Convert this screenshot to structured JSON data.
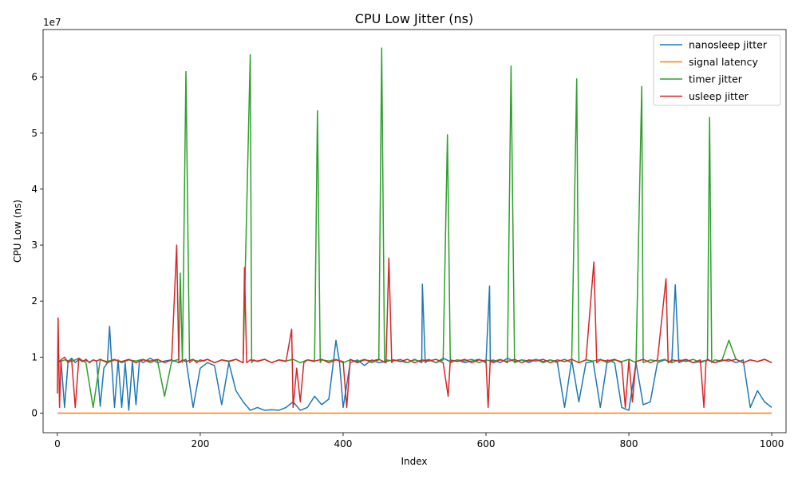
{
  "chart_data": {
    "type": "line",
    "title": "CPU Low Jitter (ns)",
    "xlabel": "Index",
    "ylabel": "CPU Low (ns)",
    "y_offset_label": "1e7",
    "xlim": [
      -20,
      1020
    ],
    "ylim": [
      -3500000,
      68500000
    ],
    "x_ticks": [
      0,
      200,
      400,
      600,
      800,
      1000
    ],
    "y_ticks": [
      0,
      10000000,
      20000000,
      30000000,
      40000000,
      50000000,
      60000000
    ],
    "y_tick_labels": [
      "0",
      "1",
      "2",
      "3",
      "4",
      "5",
      "6"
    ],
    "grid": false,
    "legend_position": "top-right",
    "series": [
      {
        "name": "nanosleep jitter",
        "color": "#1f77b4",
        "x": [
          0,
          5,
          10,
          15,
          20,
          25,
          30,
          35,
          40,
          45,
          50,
          55,
          60,
          65,
          70,
          73,
          76,
          80,
          85,
          90,
          95,
          100,
          105,
          110,
          115,
          120,
          130,
          140,
          150,
          160,
          170,
          180,
          190,
          200,
          210,
          220,
          230,
          240,
          250,
          260,
          270,
          280,
          290,
          300,
          310,
          320,
          330,
          340,
          350,
          360,
          370,
          380,
          390,
          395,
          400,
          410,
          420,
          430,
          440,
          450,
          460,
          470,
          480,
          490,
          500,
          510,
          511,
          515,
          520,
          530,
          540,
          550,
          560,
          570,
          580,
          590,
          600,
          605,
          606,
          610,
          620,
          630,
          640,
          650,
          660,
          670,
          680,
          690,
          700,
          710,
          720,
          730,
          740,
          750,
          760,
          770,
          780,
          790,
          800,
          810,
          820,
          830,
          840,
          850,
          860,
          865,
          870,
          880,
          890,
          900,
          910,
          920,
          930,
          940,
          950,
          960,
          970,
          980,
          990,
          1000
        ],
        "values": [
          9000000,
          9500000,
          1000000,
          9200000,
          9800000,
          9000000,
          9600000,
          9200000,
          9400000,
          9100000,
          9500000,
          9300000,
          1200000,
          8000000,
          9000000,
          15500000,
          9000000,
          1000000,
          9500000,
          1000000,
          9000000,
          500000,
          9200000,
          1500000,
          9500000,
          9000000,
          9800000,
          9000000,
          9300000,
          9500000,
          9000000,
          9600000,
          1000000,
          8000000,
          9000000,
          8500000,
          1500000,
          9000000,
          4000000,
          2000000,
          500000,
          1000000,
          500000,
          600000,
          500000,
          1000000,
          2000000,
          500000,
          1000000,
          3000000,
          1500000,
          2500000,
          13000000,
          9000000,
          1000000,
          9000000,
          9500000,
          8500000,
          9500000,
          9000000,
          9200000,
          9500000,
          9300000,
          9000000,
          9600000,
          9000000,
          23000000,
          9000000,
          9500000,
          9000000,
          9800000,
          9200000,
          9500000,
          9000000,
          9300000,
          9600000,
          9000000,
          22700000,
          9000000,
          9500000,
          9000000,
          9800000,
          9200000,
          9500000,
          9000000,
          9600000,
          9200000,
          9500000,
          9000000,
          1000000,
          9500000,
          2000000,
          9000000,
          9200000,
          1000000,
          9500000,
          9000000,
          1000000,
          500000,
          9000000,
          1500000,
          2000000,
          9000000,
          9500000,
          9000000,
          22900000,
          9000000,
          9500000,
          9000000,
          9200000,
          9500000,
          9000000,
          9300000,
          9600000,
          9000000,
          9500000,
          1000000,
          4000000,
          2000000,
          1000000
        ]
      },
      {
        "name": "signal latency",
        "color": "#ff7f0e",
        "x": [
          0,
          1000
        ],
        "values": [
          0,
          0
        ]
      },
      {
        "name": "timer jitter",
        "color": "#2ca02c",
        "x": [
          0,
          10,
          20,
          30,
          40,
          50,
          60,
          70,
          80,
          90,
          100,
          110,
          120,
          130,
          140,
          150,
          160,
          170,
          172,
          175,
          180,
          185,
          190,
          200,
          210,
          220,
          230,
          240,
          250,
          260,
          270,
          272,
          275,
          280,
          290,
          300,
          310,
          320,
          330,
          340,
          350,
          360,
          364,
          368,
          370,
          380,
          390,
          400,
          410,
          420,
          430,
          440,
          450,
          454,
          458,
          460,
          470,
          480,
          490,
          500,
          510,
          520,
          530,
          540,
          546,
          550,
          560,
          570,
          580,
          590,
          600,
          610,
          620,
          630,
          635,
          640,
          650,
          660,
          670,
          680,
          690,
          700,
          710,
          720,
          727,
          730,
          740,
          750,
          760,
          770,
          780,
          790,
          800,
          810,
          818,
          820,
          830,
          840,
          850,
          860,
          870,
          880,
          890,
          900,
          910,
          913,
          916,
          920,
          930,
          940,
          950,
          960,
          970,
          980,
          990,
          1000
        ],
        "values": [
          9000000,
          9500000,
          9200000,
          9800000,
          9000000,
          1000000,
          9500000,
          9200000,
          9600000,
          9000000,
          9500000,
          9300000,
          9600000,
          9000000,
          9500000,
          3000000,
          9200000,
          9600000,
          25000000,
          9000000,
          61000000,
          9000000,
          9500000,
          9200000,
          9600000,
          9000000,
          9500000,
          9300000,
          9600000,
          9000000,
          64000000,
          9000000,
          9500000,
          9200000,
          9600000,
          9000000,
          9500000,
          9300000,
          9600000,
          9000000,
          9500000,
          9200000,
          54000000,
          9000000,
          9500000,
          9300000,
          9600000,
          9000000,
          9500000,
          9200000,
          9600000,
          9000000,
          9500000,
          65200000,
          9000000,
          9500000,
          9300000,
          9600000,
          9000000,
          9500000,
          9200000,
          9600000,
          9000000,
          9500000,
          49700000,
          9000000,
          9500000,
          9300000,
          9600000,
          9000000,
          9500000,
          9200000,
          9600000,
          9000000,
          62000000,
          9000000,
          9500000,
          9300000,
          9600000,
          9000000,
          9500000,
          9200000,
          9600000,
          9000000,
          59700000,
          9000000,
          9500000,
          9300000,
          9600000,
          9000000,
          9500000,
          9200000,
          9600000,
          9000000,
          58300000,
          9000000,
          9500000,
          9300000,
          9600000,
          9000000,
          9500000,
          9200000,
          9600000,
          9000000,
          9500000,
          52800000,
          9000000,
          9500000,
          9300000,
          13000000,
          9600000,
          9000000,
          9500000,
          9200000,
          9600000,
          9000000
        ]
      },
      {
        "name": "usleep jitter",
        "color": "#d62728",
        "x": [
          0,
          1,
          3,
          5,
          10,
          15,
          20,
          25,
          30,
          35,
          40,
          45,
          50,
          55,
          60,
          70,
          80,
          90,
          100,
          110,
          120,
          130,
          140,
          150,
          160,
          167,
          170,
          175,
          180,
          190,
          195,
          200,
          205,
          210,
          220,
          230,
          240,
          250,
          260,
          262,
          265,
          270,
          280,
          290,
          300,
          310,
          320,
          328,
          330,
          335,
          340,
          345,
          350,
          360,
          370,
          380,
          390,
          400,
          405,
          410,
          420,
          430,
          440,
          450,
          460,
          464,
          468,
          470,
          480,
          490,
          500,
          510,
          520,
          530,
          540,
          547,
          550,
          560,
          570,
          580,
          590,
          600,
          603,
          606,
          610,
          620,
          630,
          640,
          650,
          660,
          670,
          680,
          690,
          700,
          710,
          720,
          730,
          740,
          751,
          755,
          760,
          770,
          780,
          790,
          795,
          800,
          805,
          810,
          820,
          830,
          840,
          852,
          855,
          860,
          870,
          880,
          890,
          900,
          905,
          908,
          910,
          920,
          930,
          940,
          950,
          960,
          970,
          980,
          990,
          1000
        ],
        "values": [
          3500000,
          17000000,
          1000000,
          9500000,
          10000000,
          9000000,
          9500000,
          1000000,
          9800000,
          9200000,
          9600000,
          9000000,
          9500000,
          9300000,
          9600000,
          9000000,
          9500000,
          9200000,
          9600000,
          9000000,
          9500000,
          9300000,
          9600000,
          9000000,
          9500000,
          30000000,
          9000000,
          9500000,
          9200000,
          9600000,
          9000000,
          9500000,
          9300000,
          9600000,
          9000000,
          9500000,
          9200000,
          9600000,
          9000000,
          26000000,
          9000000,
          9500000,
          9300000,
          9600000,
          9000000,
          9500000,
          9200000,
          15000000,
          1000000,
          8000000,
          2000000,
          9000000,
          9500000,
          9300000,
          9600000,
          9000000,
          9500000,
          9200000,
          1000000,
          9600000,
          9000000,
          9500000,
          9300000,
          9600000,
          9000000,
          27700000,
          9000000,
          9500000,
          9200000,
          9600000,
          9000000,
          9500000,
          9300000,
          9600000,
          9000000,
          3000000,
          9500000,
          9200000,
          9600000,
          9000000,
          9500000,
          9300000,
          1000000,
          9600000,
          9000000,
          9500000,
          9200000,
          9600000,
          9000000,
          9500000,
          9300000,
          9600000,
          9000000,
          9500000,
          9200000,
          9600000,
          9000000,
          9500000,
          27000000,
          9000000,
          9500000,
          9300000,
          9600000,
          9000000,
          1000000,
          9500000,
          2000000,
          9200000,
          9600000,
          9000000,
          9500000,
          24000000,
          9000000,
          9500000,
          9300000,
          9600000,
          9000000,
          9500000,
          1000000,
          9200000,
          9600000,
          9000000,
          9500000,
          9300000,
          9600000,
          9000000,
          9500000,
          9200000,
          9600000,
          9000000
        ]
      }
    ]
  }
}
